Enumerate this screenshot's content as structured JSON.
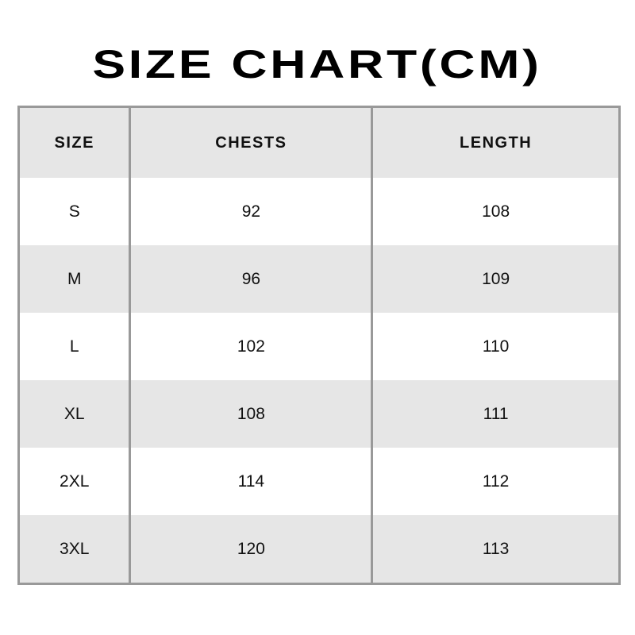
{
  "title": "SIZE CHART(CM)",
  "table": {
    "headers": [
      "SIZE",
      "CHESTS",
      "LENGTH"
    ],
    "rows": [
      [
        "S",
        "92",
        "108"
      ],
      [
        "M",
        "96",
        "109"
      ],
      [
        "L",
        "102",
        "110"
      ],
      [
        "XL",
        "108",
        "111"
      ],
      [
        "2XL",
        "114",
        "112"
      ],
      [
        "3XL",
        "120",
        "113"
      ]
    ]
  },
  "colors": {
    "header_bg": "#e6e6e6",
    "border": "#999999",
    "alt_row_bg": "#e6e6e6"
  }
}
